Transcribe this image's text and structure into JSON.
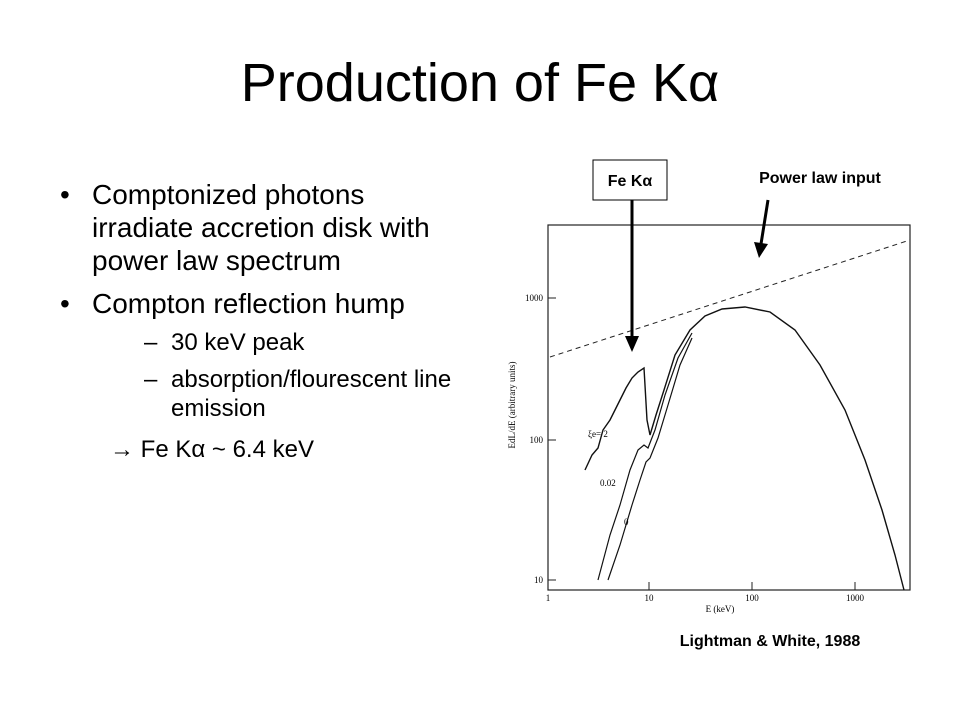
{
  "title": "Production of Fe Kα",
  "bullets": [
    {
      "text": "Comptonized photons irradiate accretion disk with power law spectrum"
    },
    {
      "text": "Compton reflection hump",
      "subitems": [
        "30 keV peak",
        "absorption/flourescent line emission"
      ]
    }
  ],
  "conclusion": "→  Fe Kα ~ 6.4 keV",
  "figure": {
    "callouts": [
      "Fe Kα",
      "Power law input"
    ],
    "x_axis_label": "E (keV)",
    "y_axis_label": "EdL/dE (arbitrary units)",
    "x_tick_labels": [
      "1",
      "10",
      "100",
      "1000"
    ],
    "y_tick_labels": [
      "10",
      "100",
      "1000"
    ],
    "curve_labels": [
      "ξe= 2",
      "0.02",
      "0"
    ],
    "caption": "Lightman & White, 1988"
  }
}
